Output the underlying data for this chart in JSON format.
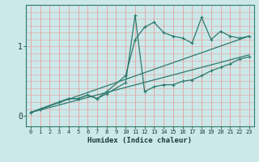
{
  "xlabel": "Humidex (Indice chaleur)",
  "bg_color": "#cce8e8",
  "line_color": "#2d7a6e",
  "grid_color_v": "#e8a0a0",
  "grid_color_h": "#e8a0a0",
  "xlim": [
    -0.5,
    23.5
  ],
  "ylim": [
    -0.15,
    1.6
  ],
  "yticks": [
    0,
    1
  ],
  "xticks": [
    0,
    1,
    2,
    3,
    4,
    5,
    6,
    7,
    8,
    9,
    10,
    11,
    12,
    13,
    14,
    15,
    16,
    17,
    18,
    19,
    20,
    21,
    22,
    23
  ],
  "line1": {
    "x": [
      0,
      1,
      3,
      4,
      5,
      6,
      7,
      8,
      10,
      11,
      12,
      13,
      14,
      15,
      16,
      17,
      18,
      19,
      20,
      21,
      22,
      23
    ],
    "y": [
      0.05,
      0.1,
      0.2,
      0.25,
      0.25,
      0.3,
      0.25,
      0.32,
      0.48,
      1.45,
      0.35,
      0.42,
      0.45,
      0.45,
      0.5,
      0.52,
      0.58,
      0.65,
      0.7,
      0.75,
      0.82,
      0.85
    ]
  },
  "line2": {
    "x": [
      0,
      1,
      3,
      4,
      5,
      6,
      7,
      8,
      10,
      11,
      12,
      13,
      14,
      15,
      16,
      17,
      18,
      19,
      20,
      21,
      22,
      23
    ],
    "y": [
      0.05,
      0.1,
      0.2,
      0.25,
      0.25,
      0.3,
      0.25,
      0.35,
      0.58,
      1.1,
      1.28,
      1.35,
      1.2,
      1.15,
      1.12,
      1.05,
      1.42,
      1.1,
      1.22,
      1.15,
      1.12,
      1.15
    ]
  },
  "diag1": {
    "x": [
      0,
      23
    ],
    "y": [
      0.05,
      1.15
    ]
  },
  "diag2": {
    "x": [
      0,
      23
    ],
    "y": [
      0.05,
      0.88
    ]
  }
}
